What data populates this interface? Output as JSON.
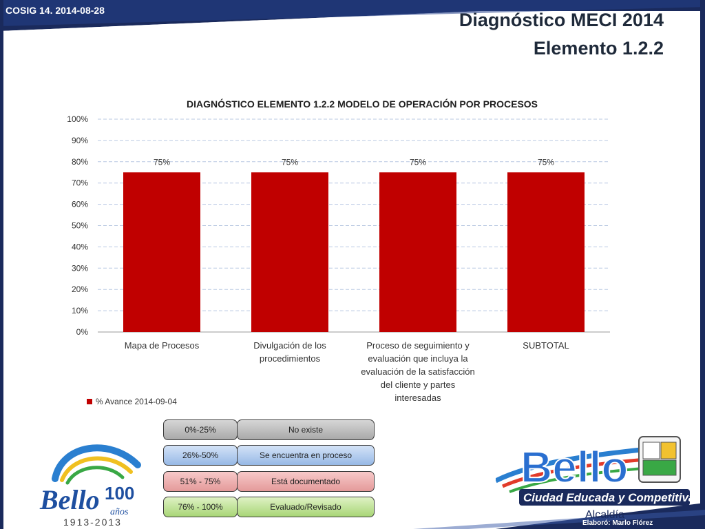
{
  "header": {
    "tag": "COSIG 14. 2014-08-28",
    "title_line1": "Diagnóstico MECI 2014",
    "title_line2": "Elemento 1.2.2"
  },
  "chart_data": {
    "type": "bar",
    "title": "DIAGNÓSTICO ELEMENTO 1.2.2 MODELO DE OPERACIÓN POR PROCESOS",
    "categories": [
      [
        "Mapa de Procesos"
      ],
      [
        "Divulgación de los",
        "procedimientos"
      ],
      [
        "Proceso de seguimiento y",
        "evaluación que incluya la",
        "evaluación de la satisfacción",
        "del cliente y partes",
        "interesadas"
      ],
      [
        "SUBTOTAL"
      ]
    ],
    "series": [
      {
        "name": "% Avance 2014-09-04",
        "values": [
          75,
          75,
          75,
          75
        ],
        "labels": [
          "75%",
          "75%",
          "75%",
          "75%"
        ],
        "color": "#c00000"
      }
    ],
    "ylim": [
      0,
      100
    ],
    "yticks": [
      "0%",
      "10%",
      "20%",
      "30%",
      "40%",
      "50%",
      "60%",
      "70%",
      "80%",
      "90%",
      "100%"
    ],
    "grid": true,
    "legend_position": "bottom-left"
  },
  "scale_legend": [
    {
      "range": "0%-25%",
      "description": "No existe"
    },
    {
      "range": "26%-50%",
      "description": "Se encuentra en proceso"
    },
    {
      "range": "51% - 75%",
      "description": "Está documentado"
    },
    {
      "range": "76% - 100%",
      "description": "Evaluado/Revisado"
    }
  ],
  "logo_left": {
    "text": "Bello",
    "number": "100",
    "sub": "años",
    "years": "1913-2013"
  },
  "logo_right": {
    "text": "Bello",
    "slogan": "Ciudad Educada y Competitiva",
    "sub": "Alcaldía"
  },
  "footer": {
    "credit": "Elaboró: Marlo Flórez"
  },
  "colors": {
    "navy": "#1a2a5c",
    "bar": "#c00000",
    "grid": "#b8c8e2"
  }
}
